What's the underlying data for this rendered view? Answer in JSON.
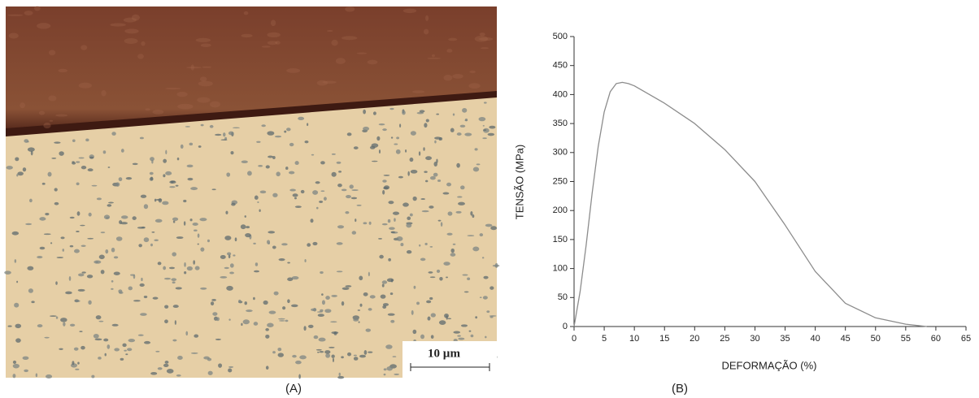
{
  "micrograph": {
    "scale_bar": "10 µm"
  },
  "panel_labels": [
    "(A)",
    "(B)"
  ],
  "chart_data": {
    "type": "line",
    "x_label": "DEFORMAÇÃO (%)",
    "y_label": "TENSÃO (MPa)",
    "x": [
      0,
      1,
      2,
      3,
      4,
      5,
      6,
      7,
      8,
      9,
      10,
      15,
      20,
      25,
      30,
      35,
      40,
      45,
      50,
      55,
      58.5
    ],
    "series": [
      {
        "color": "#8c8c8c",
        "values": [
          0,
          60,
          140,
          230,
          310,
          370,
          405,
          419,
          421,
          419,
          415,
          385,
          350,
          305,
          250,
          175,
          95,
          40,
          15,
          4,
          0
        ]
      }
    ],
    "xlim": [
      0,
      65
    ],
    "xticks": [
      0,
      5,
      10,
      15,
      20,
      25,
      30,
      35,
      40,
      45,
      50,
      55,
      60,
      65
    ],
    "ylim": [
      0,
      500
    ],
    "yticks": [
      0,
      50,
      100,
      150,
      200,
      250,
      300,
      350,
      400,
      450,
      500
    ]
  }
}
